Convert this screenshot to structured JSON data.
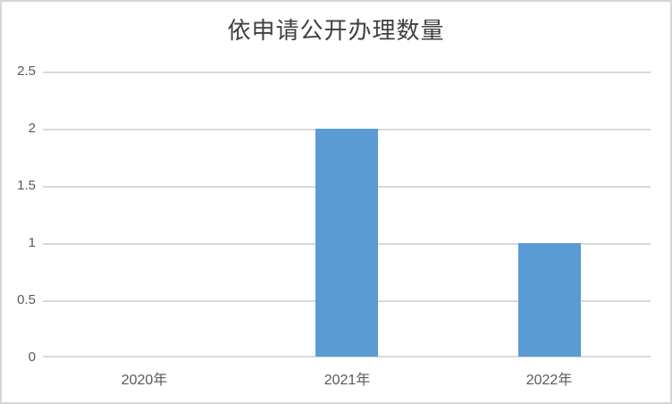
{
  "chart_data": {
    "type": "bar",
    "title": "依申请公开办理数量",
    "categories": [
      "2020年",
      "2021年",
      "2022年"
    ],
    "values": [
      0,
      2,
      1
    ],
    "xlabel": "",
    "ylabel": "",
    "ylim": [
      0,
      2.5
    ],
    "ytick_interval": 0.5,
    "ytick_labels": [
      "0",
      "0.5",
      "1",
      "1.5",
      "2",
      "2.5"
    ],
    "grid": true,
    "legend_position": "none",
    "bar_color": "#5B9BD5",
    "gridline_color": "#D9D9D9",
    "axis_label_color": "#595959",
    "title_color": "#404040",
    "frame_border_color": "#D7D7D7",
    "background_color": "#FFFFFF"
  }
}
